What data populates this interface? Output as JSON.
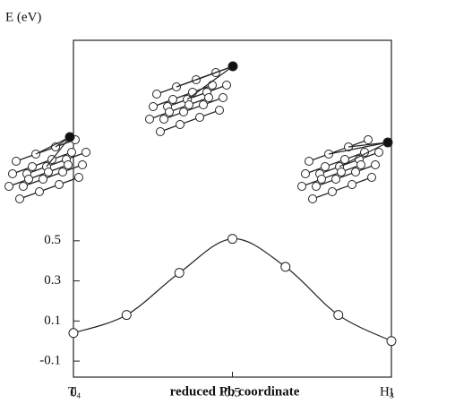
{
  "chart_data": {
    "type": "line",
    "y_label": "E (eV)",
    "x_label": "reduced Pb coordinate",
    "annotations": [
      "T₄",
      "H₃"
    ],
    "x": [
      0,
      0.167,
      0.333,
      0.5,
      0.667,
      0.833,
      1
    ],
    "series": [
      {
        "values": [
          0.04,
          0.13,
          0.34,
          0.51,
          0.37,
          0.13,
          0.0
        ],
        "color": "#222222"
      }
    ],
    "xlim": [
      0,
      1
    ],
    "xticks": [
      0,
      0.5,
      1
    ],
    "ylim": [
      -0.18,
      1.5
    ],
    "yticks": [
      -0.1,
      0.1,
      0.3,
      0.5
    ],
    "markers": "open-circle"
  }
}
